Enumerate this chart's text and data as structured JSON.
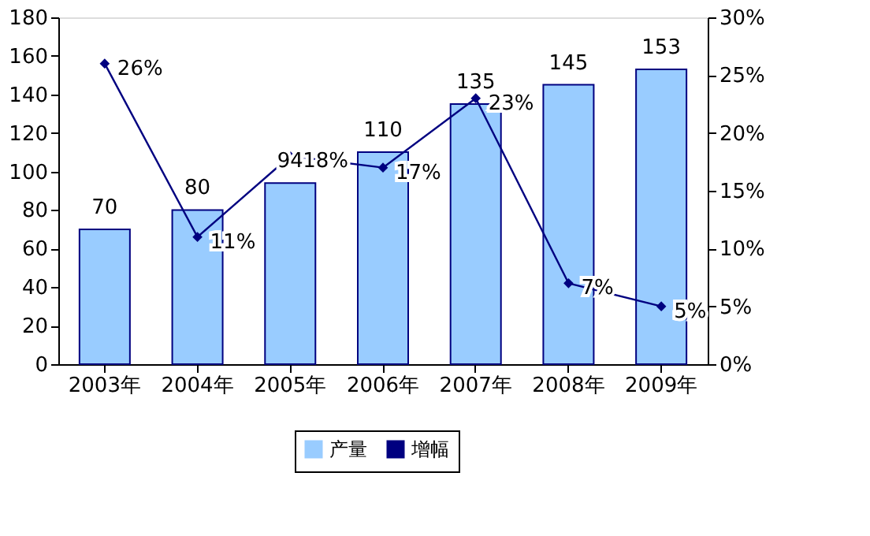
{
  "chart_data": {
    "type": "bar",
    "categories": [
      "2003年",
      "2004年",
      "2005年",
      "2006年",
      "2007年",
      "2008年",
      "2009年"
    ],
    "series": [
      {
        "name": "产量",
        "type": "bar",
        "color": "#99ccff",
        "values": [
          70,
          80,
          94,
          110,
          135,
          145,
          153
        ],
        "value_labels": [
          "70",
          "80",
          "94",
          "110",
          "135",
          "145",
          "153"
        ]
      },
      {
        "name": "增幅",
        "type": "line",
        "axis": "y2",
        "color": "#000080",
        "marker": "diamond",
        "values": [
          26,
          11,
          18,
          17,
          23,
          7,
          5
        ],
        "value_labels": [
          "26%",
          "11%",
          "18%",
          "17%",
          "23%",
          "7%",
          "5%"
        ]
      }
    ],
    "ylim": [
      0,
      180
    ],
    "yticks": [
      0,
      20,
      40,
      60,
      80,
      100,
      120,
      140,
      160,
      180
    ],
    "y2lim": [
      0,
      30
    ],
    "y2ticks": [
      {
        "value": 0,
        "label": "0%"
      },
      {
        "value": 5,
        "label": "5%"
      },
      {
        "value": 10,
        "label": "10%"
      },
      {
        "value": 15,
        "label": "15%"
      },
      {
        "value": 20,
        "label": "20%"
      },
      {
        "value": 25,
        "label": "25%"
      },
      {
        "value": 30,
        "label": "30%"
      }
    ],
    "grid": false,
    "legend": "bottom"
  }
}
